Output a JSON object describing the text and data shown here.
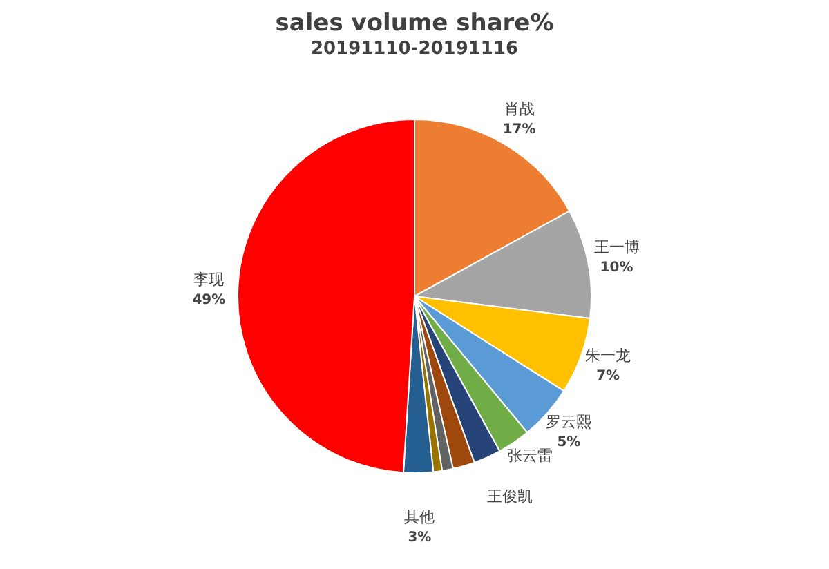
{
  "chart_data": {
    "type": "pie",
    "title": "sales volume share%",
    "subtitle": "20191110-20191116",
    "categories": [
      "肖战",
      "王一博",
      "朱一龙",
      "罗云熙",
      "张云雷",
      "王俊凯",
      null,
      null,
      null,
      "其他",
      "李现"
    ],
    "values": [
      17,
      10,
      7,
      5,
      3,
      2.5,
      2,
      1,
      0.8,
      2.7,
      49
    ],
    "value_labels": [
      "17%",
      "10%",
      "7%",
      "5%",
      null,
      null,
      null,
      null,
      null,
      "3%",
      "49%"
    ],
    "colors": [
      "#ed7d31",
      "#a5a5a5",
      "#ffc000",
      "#5b9bd5",
      "#70ad47",
      "#264478",
      "#9e480e",
      "#636363",
      "#997300",
      "#255e91",
      "#ff0000"
    ],
    "legend": false
  }
}
